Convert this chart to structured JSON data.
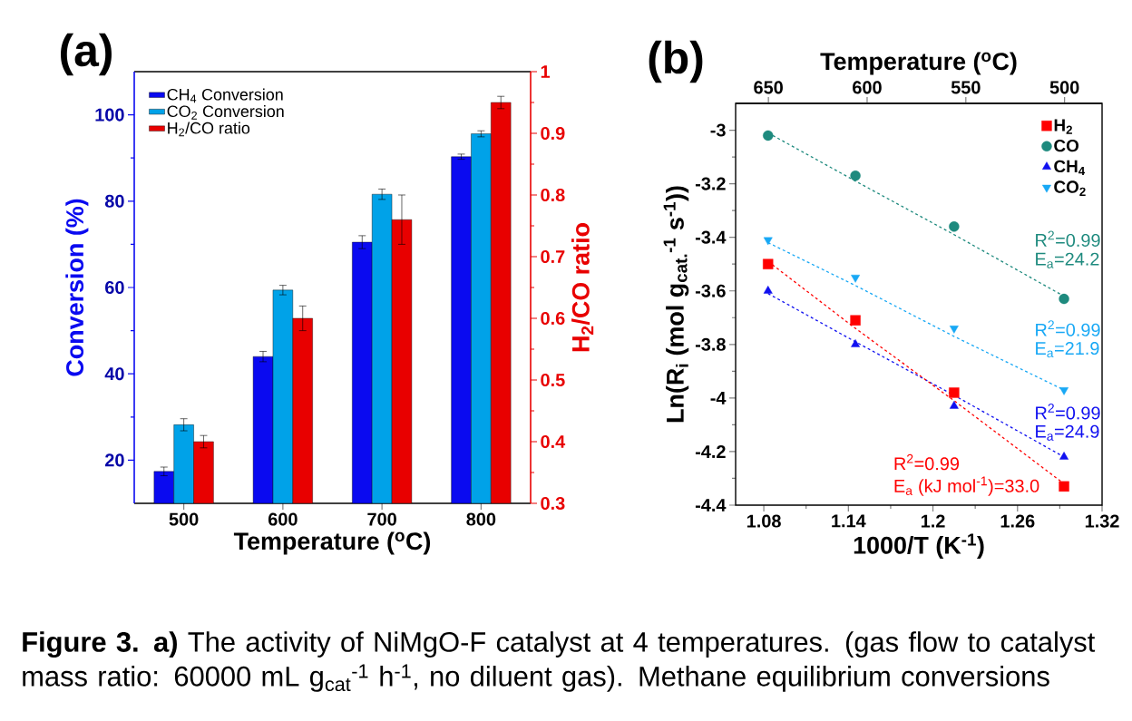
{
  "chart_data": [
    {
      "type": "bar",
      "title": "(a)",
      "xlabel": "Temperature ($^{o}$C)",
      "ylabel": "Conversion (%)",
      "y2label": "H$_{2}$/CO ratio",
      "categories": [
        "500",
        "600",
        "700",
        "800"
      ],
      "series": [
        {
          "name": "CH$_{4}$ Conversion",
          "color": "#0a0af0",
          "values": [
            17.4,
            44.0,
            70.5,
            90.3
          ],
          "errors": [
            1.0,
            1.2,
            1.5,
            0.6
          ]
        },
        {
          "name": "CO$_{2}$ Conversion",
          "color": "#00a2e8",
          "values": [
            28.2,
            59.4,
            81.6,
            95.6
          ],
          "errors": [
            1.4,
            1.1,
            1.2,
            0.7
          ]
        },
        {
          "name": "H$_{2}$/CO ratio",
          "color": "#e80000",
          "axis": "y2",
          "values": [
            0.4,
            0.6,
            0.76,
            0.95
          ],
          "errors": [
            0.01,
            0.02,
            0.04,
            0.01
          ]
        }
      ],
      "ylim": [
        10,
        110
      ],
      "yticks": [
        20,
        40,
        60,
        80,
        100
      ],
      "y2lim": [
        0.3,
        1
      ],
      "y2ticks": [
        0.3,
        0.4,
        0.5,
        0.6,
        0.7,
        0.8,
        0.9,
        1
      ],
      "legend": "top left",
      "annotations": [
        "**Figure 3. a)** The activity of NiMgO-F catalyst at 4 temperatures. (gas flow to catalyst mass ratio: 60000 mL g$_{cat}$$^{-1}$ h$^{-1}$, no diluent gas). Methane equilibrium conversions"
      ]
    },
    {
      "type": "scatter",
      "title": "(b)",
      "xlabel": "1000/T (K$^{-1}$)",
      "x2label": "Temperature ($^{o}$C)",
      "ylabel": "Ln(R$_{i}$ (mol g$_{cat.}$$^{-1}$ s$^{-1}$))",
      "xlim": [
        1.06,
        1.32
      ],
      "xticks": [
        1.08,
        1.14,
        1.2,
        1.26,
        1.32
      ],
      "x2lim": [
        666.6,
        481.0
      ],
      "x2ticks": [
        650,
        600,
        550,
        500
      ],
      "ylim": [
        -4.4,
        -2.9
      ],
      "yticks": [
        -4.4,
        -4.2,
        -4,
        -3.8,
        -3.6,
        -3.4,
        -3.2,
        -3
      ],
      "legend": "top right",
      "x": [
        1.083,
        1.145,
        1.215,
        1.293
      ],
      "series": [
        {
          "name": "H$_{2}$",
          "color": "#ff0000",
          "marker": "square",
          "values": [
            -3.5,
            -3.71,
            -3.98,
            -4.33
          ]
        },
        {
          "name": "CO",
          "color": "#1e8a7e",
          "marker": "circle",
          "values": [
            -3.02,
            -3.17,
            -3.36,
            -3.63
          ]
        },
        {
          "name": "CH$_{4}$",
          "color": "#1010f0",
          "marker": "triangle",
          "values": [
            -3.6,
            -3.8,
            -4.03,
            -4.22
          ]
        },
        {
          "name": "CO$_{2}$",
          "color": "#18a8f5",
          "marker": "triangle-down",
          "values": [
            -3.41,
            -3.55,
            -3.74,
            -3.97
          ]
        },
        {
          "type": "line",
          "color": "#1e8a7e",
          "line_style": "dashed",
          "values": [
            -3.01,
            -3.19,
            -3.39,
            -3.62
          ]
        },
        {
          "type": "line",
          "color": "#18a8f5",
          "line_style": "dashed",
          "values": [
            -3.42,
            -3.58,
            -3.77,
            -3.97
          ]
        },
        {
          "type": "line",
          "color": "#1010f0",
          "line_style": "dashed",
          "values": [
            -3.61,
            -3.79,
            -3.99,
            -4.22
          ]
        },
        {
          "type": "line",
          "color": "#ff0000",
          "line_style": "dashed",
          "values": [
            -3.49,
            -3.74,
            -4.01,
            -4.32
          ]
        }
      ],
      "annotations": [
        "R$^{2}$=0.99",
        "E$_{a}$=24.2",
        "R$^{2}$=0.99",
        "E$_{a}$=21.9",
        "R$^{2}$=0.99",
        "E$_{a}$=24.9",
        "R$^{2}$=0.99",
        "E$_{a}$ (kJ mol$^{-1}$)=33.0"
      ]
    }
  ]
}
